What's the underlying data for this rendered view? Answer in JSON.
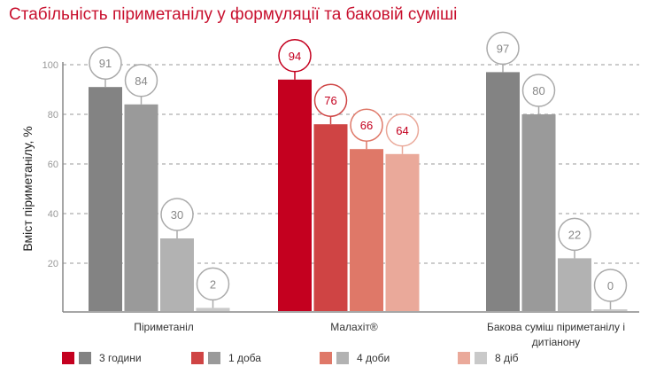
{
  "chart_data": {
    "type": "bar",
    "title": "Стабільність піриметанілу у формуляції та баковій суміші",
    "ylabel": "Вміст піриметанілу, %",
    "xlabel": "",
    "ylim": [
      0,
      100
    ],
    "yticks": [
      20,
      40,
      60,
      80,
      100
    ],
    "grid": true,
    "categories": [
      "Піриметаніл",
      "Малахіт®",
      "Бакова суміш піриметанілу і дитіанону"
    ],
    "series": [
      {
        "name": "3 години",
        "values": [
          91,
          94,
          97
        ]
      },
      {
        "name": "1 доба",
        "values": [
          84,
          76,
          80
        ]
      },
      {
        "name": "4 доби",
        "values": [
          30,
          66,
          22
        ]
      },
      {
        "name": "8 діб",
        "values": [
          2,
          64,
          0
        ]
      }
    ],
    "red_colors": [
      "#c4001f",
      "#cf4444",
      "#df7868",
      "#eaa99a"
    ],
    "grey_colors": [
      "#838383",
      "#9a9a9a",
      "#b2b2b2",
      "#c9c9c9"
    ],
    "highlight_category": 1,
    "legend_position": "bottom"
  }
}
